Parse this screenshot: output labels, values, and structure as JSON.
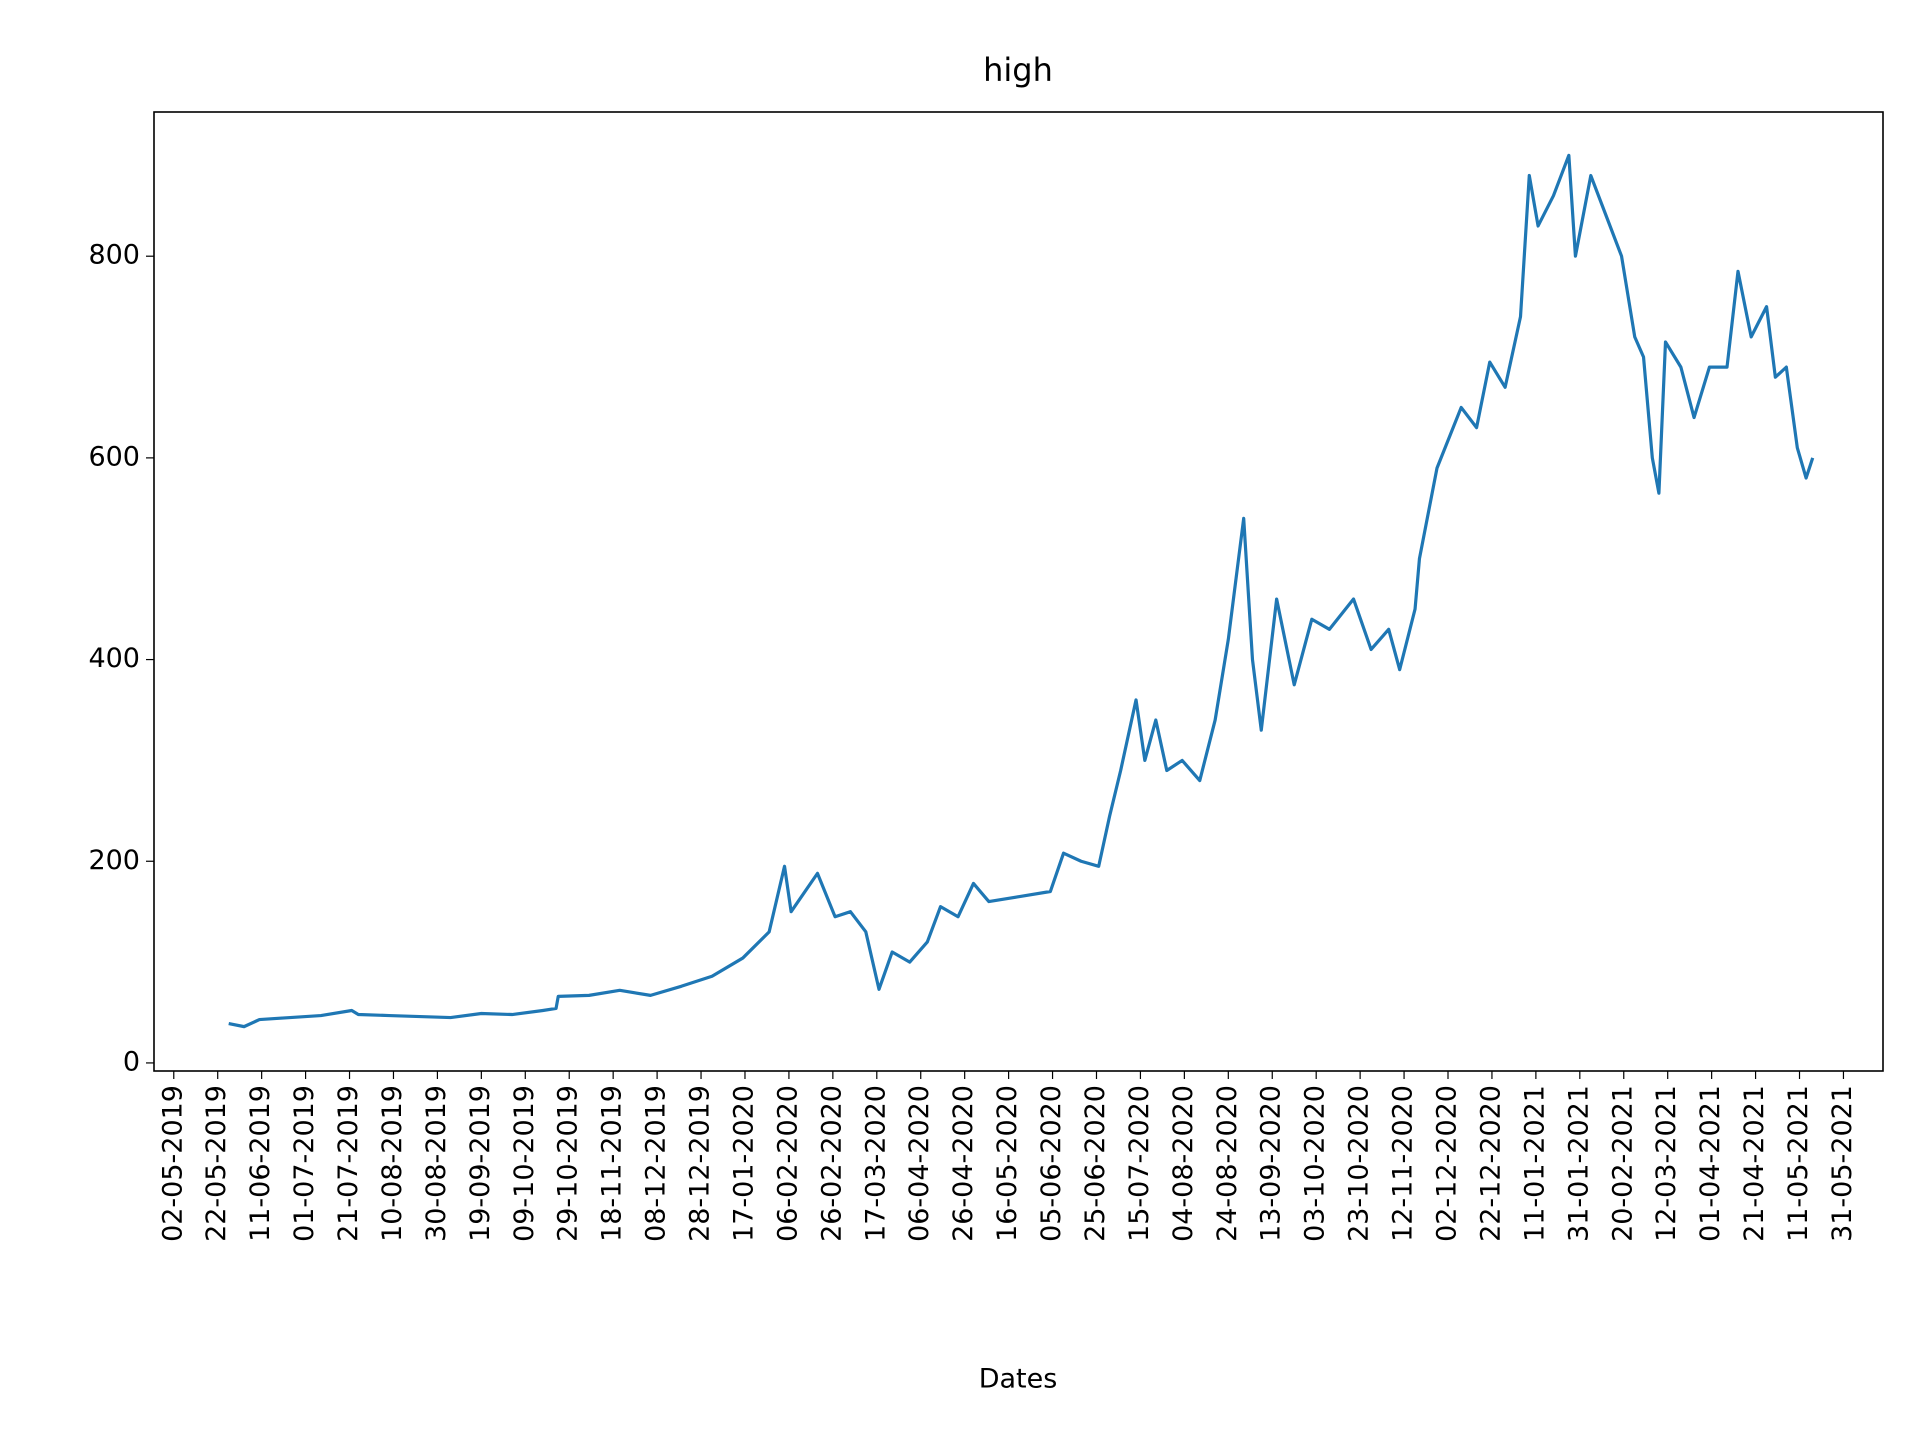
{
  "chart_data": {
    "type": "line",
    "title": "high",
    "x_label": "Dates",
    "color": "#1f77b4",
    "x": [
      "2019-05-27",
      "2019-06-03",
      "2019-06-10",
      "2019-06-24",
      "2019-07-08",
      "2019-07-22",
      "2019-07-25",
      "2019-08-08",
      "2019-08-22",
      "2019-09-05",
      "2019-09-19",
      "2019-10-03",
      "2019-10-17",
      "2019-10-23",
      "2019-10-24",
      "2019-11-07",
      "2019-11-21",
      "2019-12-05",
      "2019-12-19",
      "2020-01-02",
      "2020-01-16",
      "2020-01-28",
      "2020-02-04",
      "2020-02-07",
      "2020-02-19",
      "2020-02-27",
      "2020-03-05",
      "2020-03-12",
      "2020-03-18",
      "2020-03-24",
      "2020-04-01",
      "2020-04-09",
      "2020-04-15",
      "2020-04-23",
      "2020-04-30",
      "2020-05-07",
      "2020-05-21",
      "2020-06-04",
      "2020-06-10",
      "2020-06-18",
      "2020-06-26",
      "2020-07-01",
      "2020-07-06",
      "2020-07-13",
      "2020-07-17",
      "2020-07-22",
      "2020-07-27",
      "2020-08-03",
      "2020-08-11",
      "2020-08-18",
      "2020-08-24",
      "2020-08-31",
      "2020-09-04",
      "2020-09-08",
      "2020-09-15",
      "2020-09-23",
      "2020-10-01",
      "2020-10-09",
      "2020-10-20",
      "2020-10-28",
      "2020-11-05",
      "2020-11-10",
      "2020-11-17",
      "2020-11-19",
      "2020-11-27",
      "2020-12-08",
      "2020-12-15",
      "2020-12-21",
      "2020-12-28",
      "2021-01-04",
      "2021-01-08",
      "2021-01-12",
      "2021-01-19",
      "2021-01-26",
      "2021-01-29",
      "2021-02-05",
      "2021-02-12",
      "2021-02-19",
      "2021-02-25",
      "2021-03-01",
      "2021-03-05",
      "2021-03-08",
      "2021-03-11",
      "2021-03-18",
      "2021-03-24",
      "2021-03-31",
      "2021-04-08",
      "2021-04-13",
      "2021-04-19",
      "2021-04-26",
      "2021-04-30",
      "2021-05-05",
      "2021-05-10",
      "2021-05-14",
      "2021-05-17"
    ],
    "values": [
      39,
      36,
      43,
      45,
      47,
      52,
      48,
      47,
      46,
      45,
      49,
      48,
      52,
      54,
      66,
      67,
      72,
      67,
      76,
      86,
      104,
      130,
      195,
      150,
      188,
      145,
      150,
      130,
      73,
      110,
      100,
      120,
      155,
      145,
      178,
      160,
      165,
      170,
      208,
      200,
      195,
      245,
      290,
      360,
      300,
      340,
      290,
      300,
      280,
      340,
      420,
      540,
      400,
      330,
      460,
      375,
      440,
      430,
      460,
      410,
      430,
      390,
      450,
      500,
      590,
      650,
      630,
      695,
      670,
      740,
      880,
      830,
      860,
      900,
      800,
      880,
      840,
      800,
      720,
      700,
      600,
      565,
      715,
      690,
      640,
      690,
      690,
      785,
      720,
      750,
      680,
      690,
      610,
      580,
      600
    ],
    "xlim": [
      "2019-04-23",
      "2021-06-18"
    ],
    "xticks": [
      {
        "value": "2019-05-02",
        "label": "02-05-2019"
      },
      {
        "value": "2019-05-22",
        "label": "22-05-2019"
      },
      {
        "value": "2019-06-11",
        "label": "11-06-2019"
      },
      {
        "value": "2019-07-01",
        "label": "01-07-2019"
      },
      {
        "value": "2019-07-21",
        "label": "21-07-2019"
      },
      {
        "value": "2019-08-10",
        "label": "10-08-2019"
      },
      {
        "value": "2019-08-30",
        "label": "30-08-2019"
      },
      {
        "value": "2019-09-19",
        "label": "19-09-2019"
      },
      {
        "value": "2019-10-09",
        "label": "09-10-2019"
      },
      {
        "value": "2019-10-29",
        "label": "29-10-2019"
      },
      {
        "value": "2019-11-18",
        "label": "18-11-2019"
      },
      {
        "value": "2019-12-08",
        "label": "08-12-2019"
      },
      {
        "value": "2019-12-28",
        "label": "28-12-2019"
      },
      {
        "value": "2020-01-17",
        "label": "17-01-2020"
      },
      {
        "value": "2020-02-06",
        "label": "06-02-2020"
      },
      {
        "value": "2020-02-26",
        "label": "26-02-2020"
      },
      {
        "value": "2020-03-17",
        "label": "17-03-2020"
      },
      {
        "value": "2020-04-06",
        "label": "06-04-2020"
      },
      {
        "value": "2020-04-26",
        "label": "26-04-2020"
      },
      {
        "value": "2020-05-16",
        "label": "16-05-2020"
      },
      {
        "value": "2020-06-05",
        "label": "05-06-2020"
      },
      {
        "value": "2020-06-25",
        "label": "25-06-2020"
      },
      {
        "value": "2020-07-15",
        "label": "15-07-2020"
      },
      {
        "value": "2020-08-04",
        "label": "04-08-2020"
      },
      {
        "value": "2020-08-24",
        "label": "24-08-2020"
      },
      {
        "value": "2020-09-13",
        "label": "13-09-2020"
      },
      {
        "value": "2020-10-03",
        "label": "03-10-2020"
      },
      {
        "value": "2020-10-23",
        "label": "23-10-2020"
      },
      {
        "value": "2020-11-12",
        "label": "12-11-2020"
      },
      {
        "value": "2020-12-02",
        "label": "02-12-2020"
      },
      {
        "value": "2020-12-22",
        "label": "22-12-2020"
      },
      {
        "value": "2021-01-11",
        "label": "11-01-2021"
      },
      {
        "value": "2021-01-31",
        "label": "31-01-2021"
      },
      {
        "value": "2021-02-20",
        "label": "20-02-2021"
      },
      {
        "value": "2021-03-12",
        "label": "12-03-2021"
      },
      {
        "value": "2021-04-01",
        "label": "01-04-2021"
      },
      {
        "value": "2021-04-21",
        "label": "21-04-2021"
      },
      {
        "value": "2021-05-11",
        "label": "11-05-2021"
      },
      {
        "value": "2021-05-31",
        "label": "31-05-2021"
      }
    ],
    "ylim": [
      -8,
      943
    ],
    "yticks": [
      0,
      200,
      400,
      600,
      800
    ],
    "grid": false
  }
}
